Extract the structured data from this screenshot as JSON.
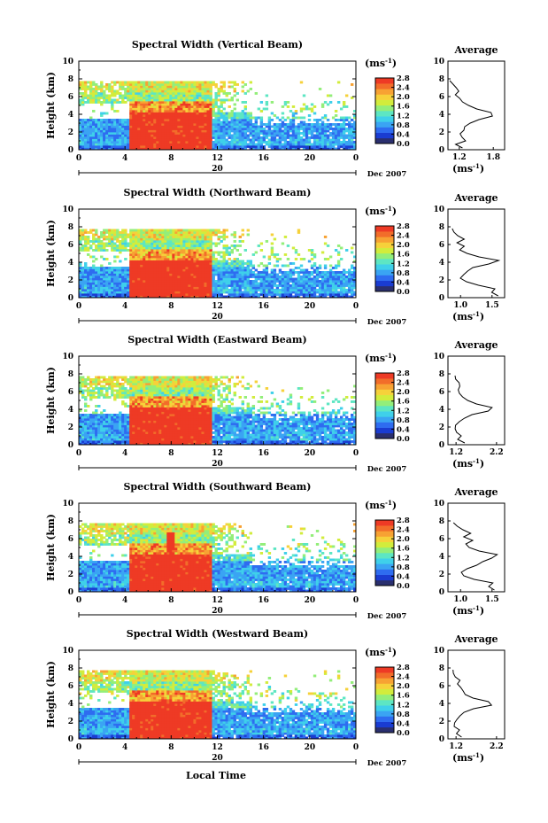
{
  "colors": {
    "scale": [
      "#2a2f6e",
      "#1a3cd1",
      "#2e6cf0",
      "#3aa4f3",
      "#3fd0ea",
      "#5de6c3",
      "#93ee7a",
      "#d2ec3c",
      "#f6d13a",
      "#f7a233",
      "#f26d2a",
      "#ee3a25"
    ],
    "background": "#ffffff",
    "line": "#000000"
  },
  "figure": {
    "xlabel_bottom": "Local Time",
    "date_label": "Dec 2007",
    "day_label": "20",
    "colorbar_unit": "(ms",
    "colorbar_unit_exp": "-1",
    "colorbar_unit_close": ")",
    "avg_title": "Average",
    "avg_unit": "(ms",
    "avg_unit_exp": "-1",
    "avg_unit_close": ")",
    "ylabel": "Height (km)"
  },
  "chart_data": [
    {
      "type": "heatmap",
      "title": "Spectral Width (Vertical Beam)",
      "ylabel": "Height (km)",
      "xlabel": "",
      "x_ticks": [
        "0",
        "4",
        "8",
        "12",
        "16",
        "20",
        "0"
      ],
      "y_ticks": [
        "0",
        "2",
        "4",
        "6",
        "8",
        "10"
      ],
      "xlim": [
        0,
        24
      ],
      "ylim": [
        0,
        10
      ],
      "colorbar_ticks": [
        "0.0",
        "0.4",
        "0.8",
        "1.2",
        "1.6",
        "2.0",
        "2.4",
        "2.8"
      ],
      "colorbar_range": [
        0,
        2.8
      ],
      "average": {
        "title": "Average",
        "x_ticks": [
          "1.2",
          "1.8"
        ],
        "xlim": [
          1.0,
          2.0
        ],
        "y_ticks": [
          "0",
          "2",
          "4",
          "6",
          "8",
          "10"
        ],
        "height": [
          0.2,
          0.6,
          1.0,
          1.4,
          1.8,
          2.2,
          2.6,
          3.0,
          3.4,
          3.8,
          4.2,
          4.6,
          5.0,
          5.4,
          5.8,
          6.2,
          6.6,
          7.0,
          7.4,
          7.8
        ],
        "value": [
          1.25,
          1.15,
          1.3,
          1.25,
          1.2,
          1.3,
          1.3,
          1.4,
          1.55,
          1.8,
          1.75,
          1.5,
          1.35,
          1.25,
          1.2,
          1.15,
          1.2,
          1.15,
          1.1,
          1.05
        ]
      }
    },
    {
      "type": "heatmap",
      "title": "Spectral Width (Northward Beam)",
      "ylabel": "Height (km)",
      "xlabel": "",
      "x_ticks": [
        "0",
        "4",
        "8",
        "12",
        "16",
        "20",
        "0"
      ],
      "y_ticks": [
        "0",
        "2",
        "4",
        "6",
        "8",
        "10"
      ],
      "xlim": [
        0,
        24
      ],
      "ylim": [
        0,
        10
      ],
      "colorbar_ticks": [
        "0.0",
        "0.4",
        "0.8",
        "1.2",
        "1.6",
        "2.0",
        "2.4",
        "2.8"
      ],
      "colorbar_range": [
        0,
        2.8
      ],
      "average": {
        "title": "Average",
        "x_ticks": [
          "1.0",
          "1.5"
        ],
        "xlim": [
          0.8,
          1.7
        ],
        "y_ticks": [
          "0",
          "2",
          "4",
          "6",
          "8",
          "10"
        ],
        "height": [
          0.2,
          0.6,
          1.0,
          1.4,
          1.8,
          2.2,
          2.6,
          3.0,
          3.4,
          3.8,
          4.2,
          4.6,
          5.0,
          5.4,
          5.8,
          6.2,
          6.6,
          7.0,
          7.4,
          7.8
        ],
        "value": [
          1.6,
          1.5,
          1.55,
          1.3,
          1.1,
          1.0,
          1.05,
          1.1,
          1.2,
          1.45,
          1.6,
          1.3,
          1.1,
          1.0,
          1.05,
          0.95,
          1.05,
          0.95,
          0.9,
          0.85
        ]
      }
    },
    {
      "type": "heatmap",
      "title": "Spectral Width (Eastward Beam)",
      "ylabel": "Height (km)",
      "xlabel": "",
      "x_ticks": [
        "0",
        "4",
        "8",
        "12",
        "16",
        "20",
        "0"
      ],
      "y_ticks": [
        "0",
        "2",
        "4",
        "6",
        "8",
        "10"
      ],
      "xlim": [
        0,
        24
      ],
      "ylim": [
        0,
        10
      ],
      "colorbar_ticks": [
        "0.0",
        "0.4",
        "0.8",
        "1.2",
        "1.6",
        "2.0",
        "2.4",
        "2.8"
      ],
      "colorbar_range": [
        0,
        2.8
      ],
      "average": {
        "title": "Average",
        "x_ticks": [
          "1.2",
          "2.2"
        ],
        "xlim": [
          1.0,
          2.4
        ],
        "y_ticks": [
          "0",
          "2",
          "4",
          "6",
          "8",
          "10"
        ],
        "height": [
          0.2,
          0.6,
          1.0,
          1.4,
          1.8,
          2.2,
          2.6,
          3.0,
          3.4,
          3.8,
          4.2,
          4.6,
          5.0,
          5.4,
          5.8,
          6.2,
          6.6,
          7.0,
          7.4,
          7.8
        ],
        "value": [
          1.4,
          1.25,
          1.35,
          1.2,
          1.15,
          1.2,
          1.3,
          1.4,
          1.6,
          2.0,
          2.1,
          1.7,
          1.5,
          1.35,
          1.3,
          1.25,
          1.3,
          1.25,
          1.2,
          1.15
        ]
      }
    },
    {
      "type": "heatmap",
      "title": "Spectral Width (Southward Beam)",
      "ylabel": "Height (km)",
      "xlabel": "",
      "x_ticks": [
        "0",
        "4",
        "8",
        "12",
        "16",
        "20",
        "0"
      ],
      "y_ticks": [
        "0",
        "2",
        "4",
        "6",
        "8",
        "10"
      ],
      "xlim": [
        0,
        24
      ],
      "ylim": [
        0,
        10
      ],
      "colorbar_ticks": [
        "0.0",
        "0.4",
        "0.8",
        "1.2",
        "1.6",
        "2.0",
        "2.4",
        "2.8"
      ],
      "colorbar_range": [
        0,
        2.8
      ],
      "average": {
        "title": "Average",
        "x_ticks": [
          "1.0",
          "1.5"
        ],
        "xlim": [
          0.8,
          1.7
        ],
        "y_ticks": [
          "0",
          "2",
          "4",
          "6",
          "8",
          "10"
        ],
        "height": [
          0.2,
          0.6,
          1.0,
          1.4,
          1.8,
          2.2,
          2.6,
          3.0,
          3.4,
          3.8,
          4.2,
          4.6,
          5.0,
          5.4,
          5.8,
          6.2,
          6.6,
          7.0,
          7.4,
          7.8
        ],
        "value": [
          1.55,
          1.45,
          1.5,
          1.2,
          1.05,
          1.0,
          1.1,
          1.25,
          1.35,
          1.5,
          1.6,
          1.3,
          1.15,
          1.1,
          1.2,
          1.05,
          1.15,
          1.05,
          0.95,
          0.9
        ]
      }
    },
    {
      "type": "heatmap",
      "title": "Spectral Width (Westward Beam)",
      "ylabel": "Height (km)",
      "xlabel": "Local Time",
      "x_ticks": [
        "0",
        "4",
        "8",
        "12",
        "16",
        "20",
        "0"
      ],
      "y_ticks": [
        "0",
        "2",
        "4",
        "6",
        "8",
        "10"
      ],
      "xlim": [
        0,
        24
      ],
      "ylim": [
        0,
        10
      ],
      "colorbar_ticks": [
        "0.0",
        "0.4",
        "0.8",
        "1.2",
        "1.6",
        "2.0",
        "2.4",
        "2.8"
      ],
      "colorbar_range": [
        0,
        2.8
      ],
      "average": {
        "title": "Average",
        "x_ticks": [
          "1.2",
          "2.2"
        ],
        "xlim": [
          1.0,
          2.4
        ],
        "y_ticks": [
          "0",
          "2",
          "4",
          "6",
          "8",
          "10"
        ],
        "height": [
          0.2,
          0.6,
          1.0,
          1.4,
          1.8,
          2.2,
          2.6,
          3.0,
          3.4,
          3.8,
          4.2,
          4.6,
          5.0,
          5.4,
          5.8,
          6.2,
          6.6,
          7.0,
          7.4,
          7.8
        ],
        "value": [
          1.35,
          1.2,
          1.3,
          1.15,
          1.15,
          1.2,
          1.3,
          1.4,
          1.65,
          2.1,
          2.0,
          1.6,
          1.45,
          1.35,
          1.3,
          1.25,
          1.3,
          1.2,
          1.15,
          1.1
        ]
      }
    }
  ]
}
